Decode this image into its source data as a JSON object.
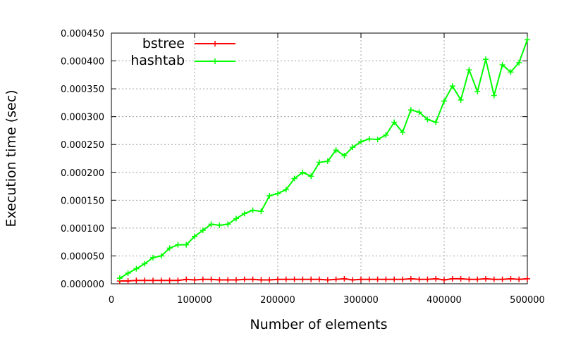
{
  "chart_data": {
    "type": "line",
    "xlabel": "Number of elements",
    "ylabel": "Execution time (sec)",
    "xlim": [
      0,
      500000
    ],
    "ylim": [
      0,
      0.00045
    ],
    "xticks": [
      0,
      100000,
      200000,
      300000,
      400000,
      500000
    ],
    "xtick_labels": [
      "0",
      "100000",
      "200000",
      "300000",
      "400000",
      "500000"
    ],
    "yticks": [
      0,
      5e-05,
      0.0001,
      0.00015,
      0.0002,
      0.00025,
      0.0003,
      0.00035,
      0.0004,
      0.00045
    ],
    "ytick_labels": [
      "0.000000",
      "0.000050",
      "0.000100",
      "0.000150",
      "0.000200",
      "0.000250",
      "0.000300",
      "0.000350",
      "0.000400",
      "0.000450"
    ],
    "grid": true,
    "legend_position": "top-left",
    "x": [
      10000,
      20000,
      30000,
      40000,
      50000,
      60000,
      70000,
      80000,
      90000,
      100000,
      110000,
      120000,
      130000,
      140000,
      150000,
      160000,
      170000,
      180000,
      190000,
      200000,
      210000,
      220000,
      230000,
      240000,
      250000,
      260000,
      270000,
      280000,
      290000,
      300000,
      310000,
      320000,
      330000,
      340000,
      350000,
      360000,
      370000,
      380000,
      390000,
      400000,
      410000,
      420000,
      430000,
      440000,
      450000,
      460000,
      470000,
      480000,
      490000,
      500000
    ],
    "series": [
      {
        "name": "bstree",
        "color": "#ff0000",
        "values": [
          5e-06,
          5e-06,
          6e-06,
          6e-06,
          6e-06,
          6e-06,
          6e-06,
          6e-06,
          8e-06,
          7e-06,
          8e-06,
          8e-06,
          7e-06,
          7e-06,
          7e-06,
          8e-06,
          8e-06,
          7e-06,
          7e-06,
          8e-06,
          8e-06,
          8e-06,
          8e-06,
          8e-06,
          8e-06,
          7e-06,
          8e-06,
          9e-06,
          7e-06,
          8e-06,
          8e-06,
          8e-06,
          8e-06,
          8e-06,
          8e-06,
          9e-06,
          8e-06,
          8e-06,
          9e-06,
          7e-06,
          9e-06,
          9e-06,
          8e-06,
          8e-06,
          9e-06,
          8e-06,
          8e-06,
          9e-06,
          8e-06,
          9e-06
        ]
      },
      {
        "name": "hashtab",
        "color": "#00ff00",
        "values": [
          1e-05,
          1.9e-05,
          2.7e-05,
          3.6e-05,
          4.7e-05,
          5e-05,
          6.4e-05,
          7e-05,
          7e-05,
          8.5e-05,
          9.6e-05,
          0.000107,
          0.000105,
          0.000107,
          0.000117,
          0.000126,
          0.000132,
          0.00013,
          0.000158,
          0.000162,
          0.000169,
          0.000189,
          0.0002,
          0.000193,
          0.000218,
          0.00022,
          0.00024,
          0.00023,
          0.000245,
          0.000255,
          0.00026,
          0.000259,
          0.000267,
          0.00029,
          0.000272,
          0.000312,
          0.000308,
          0.000295,
          0.00029,
          0.000328,
          0.000355,
          0.00033,
          0.000384,
          0.000345,
          0.000403,
          0.000338,
          0.000393,
          0.00038,
          0.000397,
          0.000438
        ]
      }
    ]
  }
}
